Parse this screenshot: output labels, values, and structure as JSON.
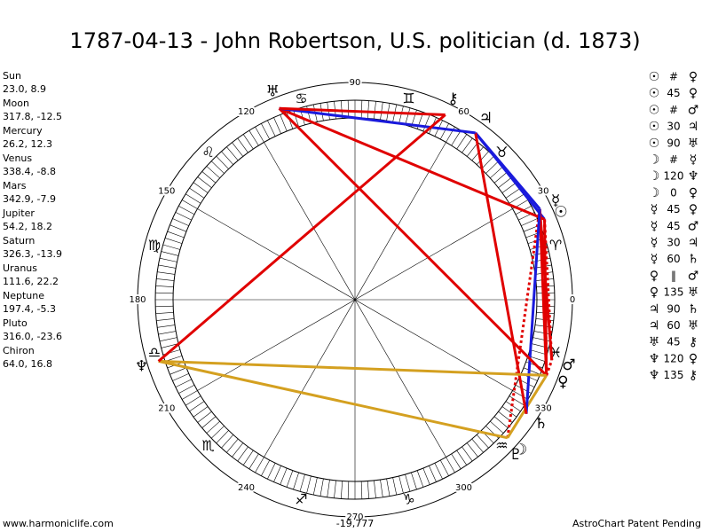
{
  "title": "1787-04-13 - John Robertson, U.S. politician (d. 1873)",
  "planets": [
    {
      "name": "Sun",
      "glyph": "☉",
      "coords": "23.0, 8.9"
    },
    {
      "name": "Moon",
      "glyph": "☽",
      "coords": "317.8, -12.5"
    },
    {
      "name": "Mercury",
      "glyph": "☿",
      "coords": "26.2, 12.3"
    },
    {
      "name": "Venus",
      "glyph": "♀",
      "coords": "338.4, -8.8"
    },
    {
      "name": "Mars",
      "glyph": "♂",
      "coords": "342.9, -7.9"
    },
    {
      "name": "Jupiter",
      "glyph": "♃",
      "coords": "54.2, 18.2"
    },
    {
      "name": "Saturn",
      "glyph": "♄",
      "coords": "326.3, -13.9"
    },
    {
      "name": "Uranus",
      "glyph": "♅",
      "coords": "111.6, 22.2"
    },
    {
      "name": "Neptune",
      "glyph": "♆",
      "coords": "197.4, -5.3"
    },
    {
      "name": "Pluto",
      "glyph": "♇",
      "coords": "316.0, -23.6"
    },
    {
      "name": "Chiron",
      "glyph": "⚷",
      "coords": "64.0, 16.8"
    }
  ],
  "aspects": [
    {
      "p1": "☉",
      "aspect": "#",
      "p2": "♀"
    },
    {
      "p1": "☉",
      "aspect": "45",
      "p2": "♀"
    },
    {
      "p1": "☉",
      "aspect": "#",
      "p2": "♂"
    },
    {
      "p1": "☉",
      "aspect": "30",
      "p2": "♃"
    },
    {
      "p1": "☉",
      "aspect": "90",
      "p2": "♅"
    },
    {
      "p1": "☽",
      "aspect": "#",
      "p2": "☿"
    },
    {
      "p1": "☽",
      "aspect": "120",
      "p2": "♆"
    },
    {
      "p1": "☽",
      "aspect": "0",
      "p2": "♀"
    },
    {
      "p1": "☿",
      "aspect": "45",
      "p2": "♀"
    },
    {
      "p1": "☿",
      "aspect": "45",
      "p2": "♂"
    },
    {
      "p1": "☿",
      "aspect": "30",
      "p2": "♃"
    },
    {
      "p1": "☿",
      "aspect": "60",
      "p2": "♄"
    },
    {
      "p1": "♀",
      "aspect": "‖",
      "p2": "♂"
    },
    {
      "p1": "♀",
      "aspect": "135",
      "p2": "♅"
    },
    {
      "p1": "♃",
      "aspect": "90",
      "p2": "♄"
    },
    {
      "p1": "♃",
      "aspect": "60",
      "p2": "♅"
    },
    {
      "p1": "♅",
      "aspect": "45",
      "p2": "⚷"
    },
    {
      "p1": "♆",
      "aspect": "120",
      "p2": "♀"
    },
    {
      "p1": "♆",
      "aspect": "135",
      "p2": "⚷"
    }
  ],
  "wheel_labels": [
    0,
    30,
    60,
    90,
    120,
    150,
    180,
    210,
    240,
    270,
    300,
    330
  ],
  "zodiac": [
    "♈",
    "♉",
    "♊",
    "♋",
    "♌",
    "♍",
    "♎",
    "♏",
    "♐",
    "♑",
    "♒",
    "♓"
  ],
  "footer": {
    "left": "www.harmoniclife.com",
    "center": "-19,777",
    "right": "AstroChart Patent Pending"
  }
}
